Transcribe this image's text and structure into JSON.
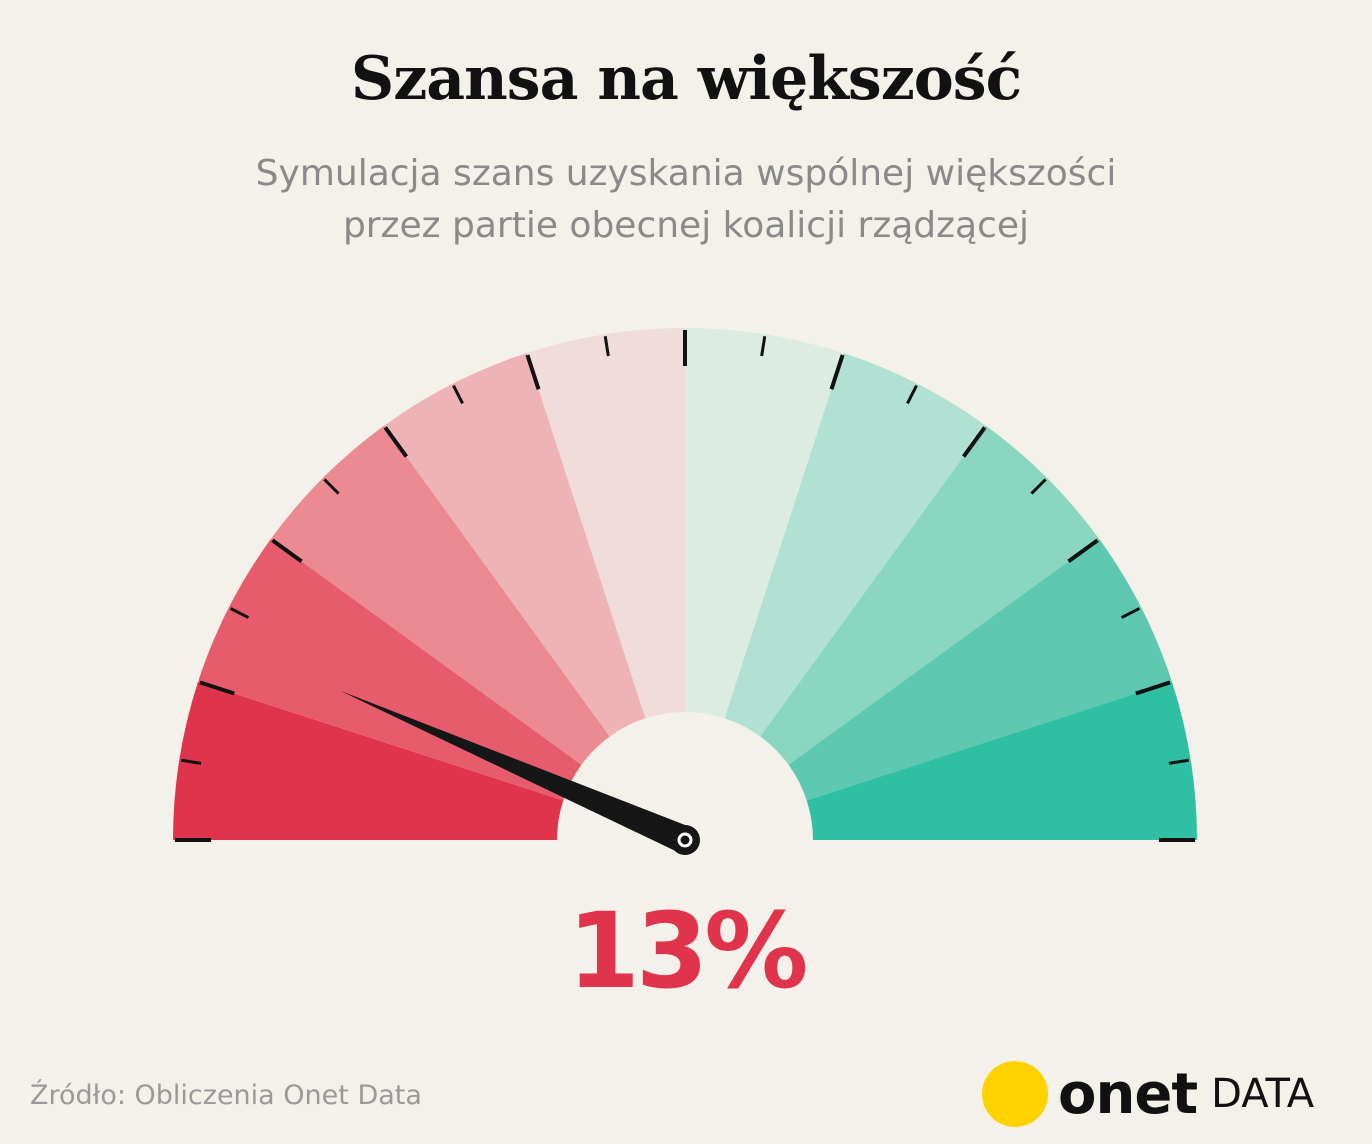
{
  "title": "Szansa na większość",
  "subtitle_line1": "Symulacja szans uzyskania wspólnej większości",
  "subtitle_line2": "przez partie obecnej koalicji rządzącej",
  "value_label": "13%",
  "source": "Źródło: Obliczenia Onet Data",
  "brand": {
    "name": "onet",
    "suffix": "DATA",
    "dot_color": "#ffd200"
  },
  "colors": {
    "value_text": "#e0344c",
    "needle": "#161616",
    "segments": [
      "#e0344c",
      "#e65c6c",
      "#eb8a91",
      "#eeb3b6",
      "#f0dcda",
      "#dcece2",
      "#b1e1d2",
      "#8ad6c1",
      "#5ec9b0",
      "#2fbfa3"
    ]
  },
  "chart_data": {
    "type": "gauge",
    "min": 0,
    "max": 100,
    "value": 13,
    "segments": 10,
    "major_tick_step": 10,
    "minor_tick_step": 5
  }
}
